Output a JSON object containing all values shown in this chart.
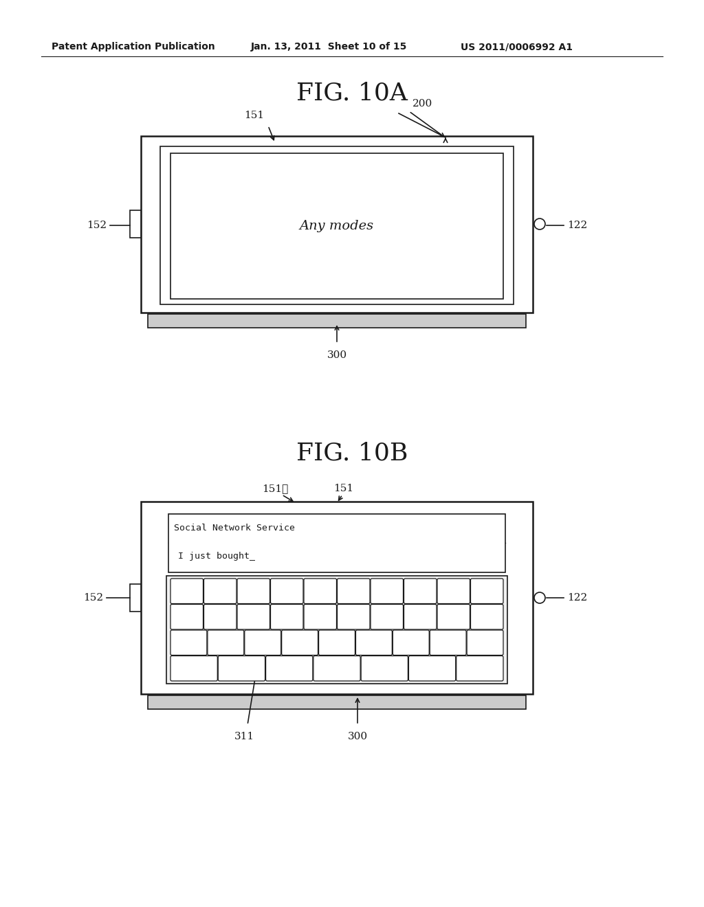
{
  "background_color": "#ffffff",
  "header_text": "Patent Application Publication",
  "header_date": "Jan. 13, 2011  Sheet 10 of 15",
  "header_patent": "US 2011/0006992 A1",
  "fig1_title": "FIG. 10A",
  "fig2_title": "FIG. 10B",
  "fig1_label_center": "Any modes",
  "fig2_label_top": "Social Network Service",
  "fig2_label_bottom": "I just bought_",
  "color_main": "#1a1a1a",
  "color_bg": "#ffffff",
  "color_slide": "#d8d8d8"
}
